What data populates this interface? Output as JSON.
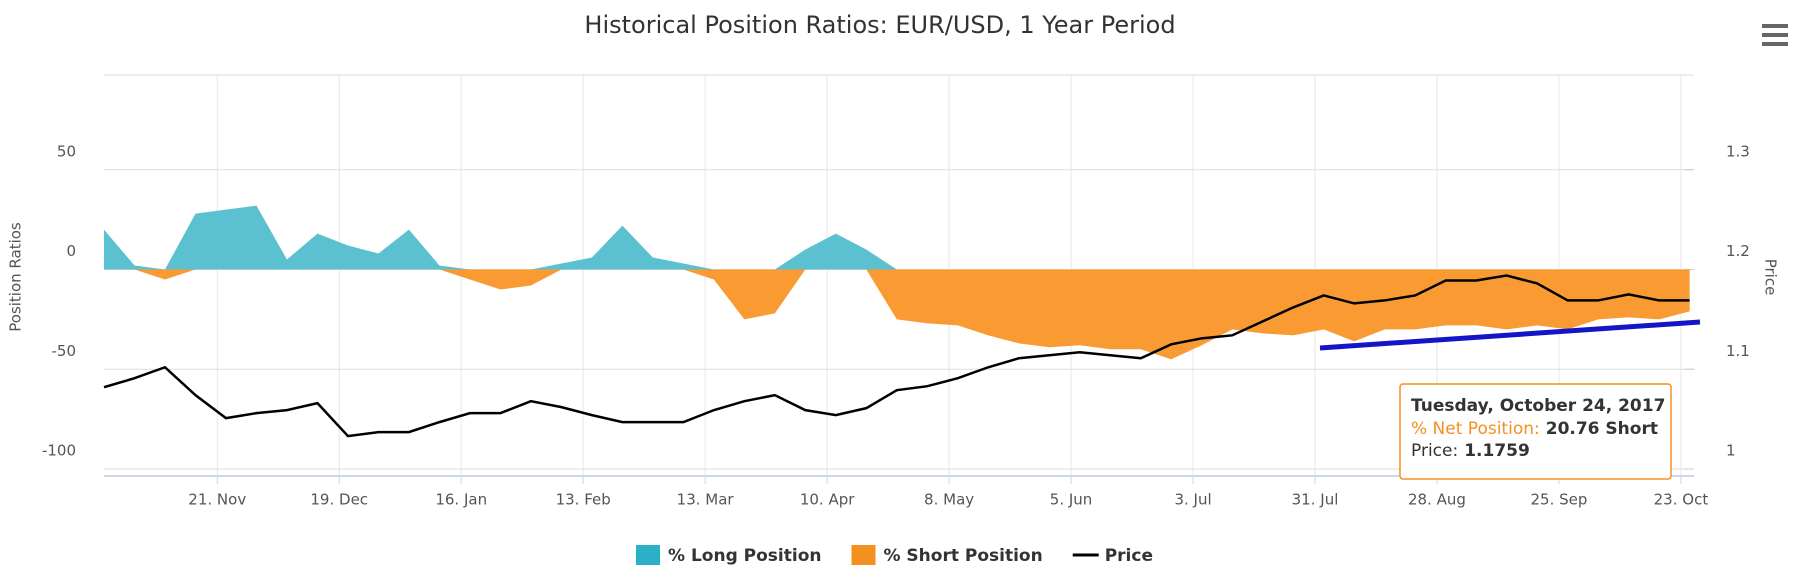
{
  "chart_data": {
    "type": "area",
    "title": "Historical Position Ratios: EUR/USD, 1 Year Period",
    "y_label": "Position Ratios",
    "y2_label": "Price",
    "x": [
      "2016-10-26",
      "2016-11-02",
      "2016-11-09",
      "2016-11-16",
      "2016-11-23",
      "2016-11-30",
      "2016-12-07",
      "2016-12-14",
      "2016-12-21",
      "2016-12-28",
      "2017-01-04",
      "2017-01-11",
      "2017-01-18",
      "2017-01-25",
      "2017-02-01",
      "2017-02-08",
      "2017-02-15",
      "2017-02-22",
      "2017-03-01",
      "2017-03-08",
      "2017-03-15",
      "2017-03-22",
      "2017-03-29",
      "2017-04-05",
      "2017-04-12",
      "2017-04-19",
      "2017-04-26",
      "2017-05-03",
      "2017-05-10",
      "2017-05-17",
      "2017-05-24",
      "2017-05-31",
      "2017-06-07",
      "2017-06-14",
      "2017-06-21",
      "2017-06-28",
      "2017-07-05",
      "2017-07-12",
      "2017-07-19",
      "2017-07-26",
      "2017-08-02",
      "2017-08-09",
      "2017-08-16",
      "2017-08-23",
      "2017-08-30",
      "2017-09-06",
      "2017-09-13",
      "2017-09-20",
      "2017-09-27",
      "2017-10-04",
      "2017-10-11",
      "2017-10-18",
      "2017-10-25"
    ],
    "series": [
      {
        "name": "% Long Position",
        "color": "#5bc0cf",
        "legend_color": "#2bb0c6",
        "values": [
          20,
          2,
          0,
          28,
          30,
          32,
          5,
          18,
          12,
          8,
          20,
          2,
          0,
          0,
          0,
          3,
          6,
          22,
          6,
          3,
          0,
          0,
          0,
          10,
          18,
          10,
          0,
          0,
          0,
          0,
          0,
          0,
          0,
          0,
          0,
          0,
          0,
          0,
          0,
          0,
          0,
          0,
          0,
          0,
          0,
          0,
          0,
          0,
          0,
          0,
          0,
          0,
          0
        ]
      },
      {
        "name": "% Short Position",
        "color": "#f99a33",
        "legend_color": "#f39020",
        "values": [
          0,
          0,
          -5,
          0,
          0,
          0,
          0,
          0,
          0,
          0,
          0,
          0,
          -5,
          -10,
          -8,
          0,
          0,
          0,
          0,
          0,
          -5,
          -25,
          -22,
          0,
          0,
          0,
          -25,
          -27,
          -28,
          -33,
          -37,
          -39,
          -38,
          -40,
          -40,
          -45,
          -38,
          -30,
          -32,
          -33,
          -30,
          -36,
          -30,
          -30,
          -28,
          -28,
          -30,
          -28,
          -30,
          -25,
          -24,
          -25,
          -21
        ]
      },
      {
        "name": "Price",
        "color": "#000000",
        "axis": "y2",
        "values": [
          1.082,
          1.091,
          1.102,
          1.074,
          1.051,
          1.056,
          1.059,
          1.066,
          1.033,
          1.037,
          1.037,
          1.047,
          1.056,
          1.056,
          1.068,
          1.062,
          1.054,
          1.047,
          1.047,
          1.047,
          1.059,
          1.068,
          1.074,
          1.059,
          1.054,
          1.061,
          1.079,
          1.083,
          1.091,
          1.102,
          1.111,
          1.114,
          1.117,
          1.114,
          1.111,
          1.125,
          1.131,
          1.134,
          1.148,
          1.162,
          1.174,
          1.166,
          1.169,
          1.174,
          1.189,
          1.189,
          1.194,
          1.186,
          1.169,
          1.169,
          1.175,
          1.169,
          1.169
        ]
      }
    ],
    "xlim": [
      "2016-10-26",
      "2017-10-26"
    ],
    "xticks": [
      {
        "value": "2016-11-21",
        "label": "21. Nov"
      },
      {
        "value": "2016-12-19",
        "label": "19. Dec"
      },
      {
        "value": "2017-01-16",
        "label": "16. Jan"
      },
      {
        "value": "2017-02-13",
        "label": "13. Feb"
      },
      {
        "value": "2017-03-13",
        "label": "13. Mar"
      },
      {
        "value": "2017-04-10",
        "label": "10. Apr"
      },
      {
        "value": "2017-05-08",
        "label": "8. May"
      },
      {
        "value": "2017-06-05",
        "label": "5. Jun"
      },
      {
        "value": "2017-07-03",
        "label": "3. Jul"
      },
      {
        "value": "2017-07-31",
        "label": "31. Jul"
      },
      {
        "value": "2017-08-28",
        "label": "28. Aug"
      },
      {
        "value": "2017-09-25",
        "label": "25. Sep"
      },
      {
        "value": "2017-10-23",
        "label": "23. Oct"
      }
    ],
    "ylim": [
      -100,
      100
    ],
    "yticks": [
      -100,
      -50,
      0,
      50
    ],
    "y2lim": [
      1,
      1.4
    ],
    "y2ticks": [
      1,
      1.1,
      1.2,
      1.3
    ],
    "grid": true,
    "legend": "bottom",
    "tooltip": {
      "title": "Tuesday, October 24, 2017",
      "label": "% Net Position:",
      "value": "20.76 Short",
      "price_label": "Price:",
      "price_value": "1.1759"
    }
  }
}
